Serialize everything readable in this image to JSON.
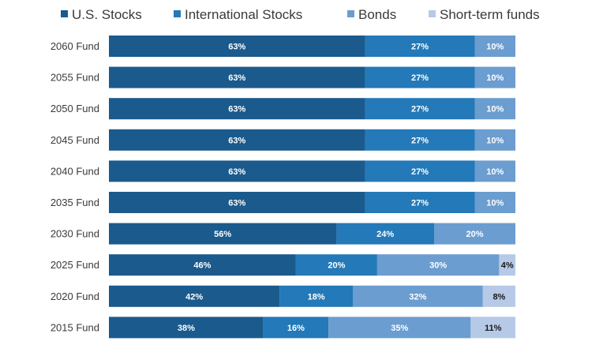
{
  "chart_data": {
    "type": "bar",
    "orientation": "horizontal",
    "stacked": true,
    "legend_position": "top",
    "grid": false,
    "xlim": [
      0,
      100
    ],
    "categories": [
      "2060 Fund",
      "2055 Fund",
      "2050 Fund",
      "2045 Fund",
      "2040 Fund",
      "2035 Fund",
      "2030 Fund",
      "2025 Fund",
      "2020 Fund",
      "2015 Fund"
    ],
    "series": [
      {
        "name": "U.S. Stocks",
        "color": "#1b5a8c",
        "label_color": "#ffffff",
        "values": [
          63,
          63,
          63,
          63,
          63,
          63,
          56,
          46,
          42,
          38
        ],
        "labels": [
          "63%",
          "63%",
          "63%",
          "63%",
          "63%",
          "63%",
          "56%",
          "46%",
          "42%",
          "38%"
        ]
      },
      {
        "name": "International Stocks",
        "color": "#2479b8",
        "label_color": "#ffffff",
        "values": [
          27,
          27,
          27,
          27,
          27,
          27,
          24,
          20,
          18,
          16
        ],
        "labels": [
          "27%",
          "27%",
          "27%",
          "27%",
          "27%",
          "27%",
          "24%",
          "20%",
          "18%",
          "16%"
        ]
      },
      {
        "name": "Bonds",
        "color": "#6b9dd0",
        "label_color": "#ffffff",
        "values": [
          10,
          10,
          10,
          10,
          10,
          10,
          20,
          30,
          32,
          35
        ],
        "labels": [
          "10%",
          "10%",
          "10%",
          "10%",
          "10%",
          "10%",
          "20%",
          "30%",
          "32%",
          "35%"
        ]
      },
      {
        "name": "Short-term funds",
        "color": "#b6c9e6",
        "label_color": "#1a1a1a",
        "values": [
          0,
          0,
          0,
          0,
          0,
          0,
          0,
          4,
          8,
          11
        ],
        "labels": [
          "",
          "",
          "",
          "",
          "",
          "",
          "",
          "4%",
          "8%",
          "11%"
        ]
      }
    ]
  }
}
